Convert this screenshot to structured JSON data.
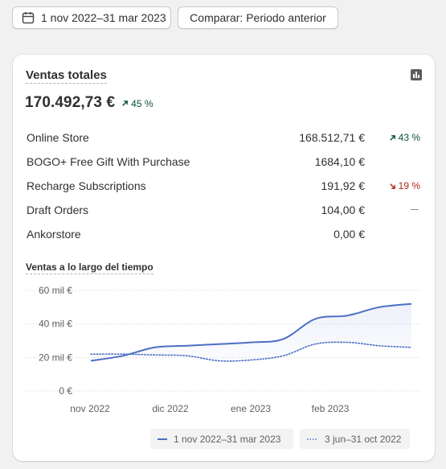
{
  "toolbar": {
    "date_range_label": "1 nov 2022–31 mar 2023",
    "compare_label": "Comparar: Periodo anterior"
  },
  "card": {
    "title": "Ventas totales",
    "total_value": "170.492,73 €",
    "total_change": "45 %",
    "total_change_direction": "up",
    "rows": [
      {
        "name": "Online Store",
        "value": "168.512,71 €",
        "change": "43 %",
        "direction": "up"
      },
      {
        "name": "BOGO+ Free Gift With Purchase",
        "value": "1684,10 €",
        "change": "",
        "direction": "none"
      },
      {
        "name": "Recharge Subscriptions",
        "value": "191,92 €",
        "change": "19 %",
        "direction": "down"
      },
      {
        "name": "Draft Orders",
        "value": "104,00 €",
        "change": "",
        "direction": "dash"
      },
      {
        "name": "Ankorstore",
        "value": "0,00 €",
        "change": "",
        "direction": "none"
      }
    ],
    "chart_title": "Ventas a lo largo del tiempo"
  },
  "colors": {
    "accent": "#4b6fc4",
    "up": "#0c5132",
    "down": "#b3261e"
  },
  "chart_data": {
    "type": "line",
    "title": "Ventas a lo largo del tiempo",
    "xlabel": "",
    "ylabel": "",
    "ylim": [
      0,
      60000
    ],
    "y_ticks": [
      "60 mil €",
      "40 mil €",
      "20 mil €",
      "0 €"
    ],
    "y_tick_values": [
      60000,
      40000,
      20000,
      0
    ],
    "x_ticks": [
      "nov 2022",
      "dic 2022",
      "ene 2023",
      "feb 2023"
    ],
    "x": [
      "2022-11-01",
      "2022-11-15",
      "2022-12-01",
      "2022-12-15",
      "2023-01-01",
      "2023-01-15",
      "2023-02-01",
      "2023-02-15",
      "2023-03-01",
      "2023-03-15",
      "2023-03-31"
    ],
    "grid": true,
    "series": [
      {
        "name": "1 nov 2022–31 mar 2023",
        "style": "solid",
        "values": [
          18000,
          21000,
          26000,
          27000,
          28000,
          29000,
          31000,
          43000,
          45000,
          50000,
          52000
        ]
      },
      {
        "name": "3 jun–31 oct 2022",
        "style": "dotted",
        "values": [
          22000,
          22000,
          21500,
          21000,
          18000,
          18500,
          21000,
          28000,
          29000,
          27000,
          26000
        ]
      }
    ]
  }
}
